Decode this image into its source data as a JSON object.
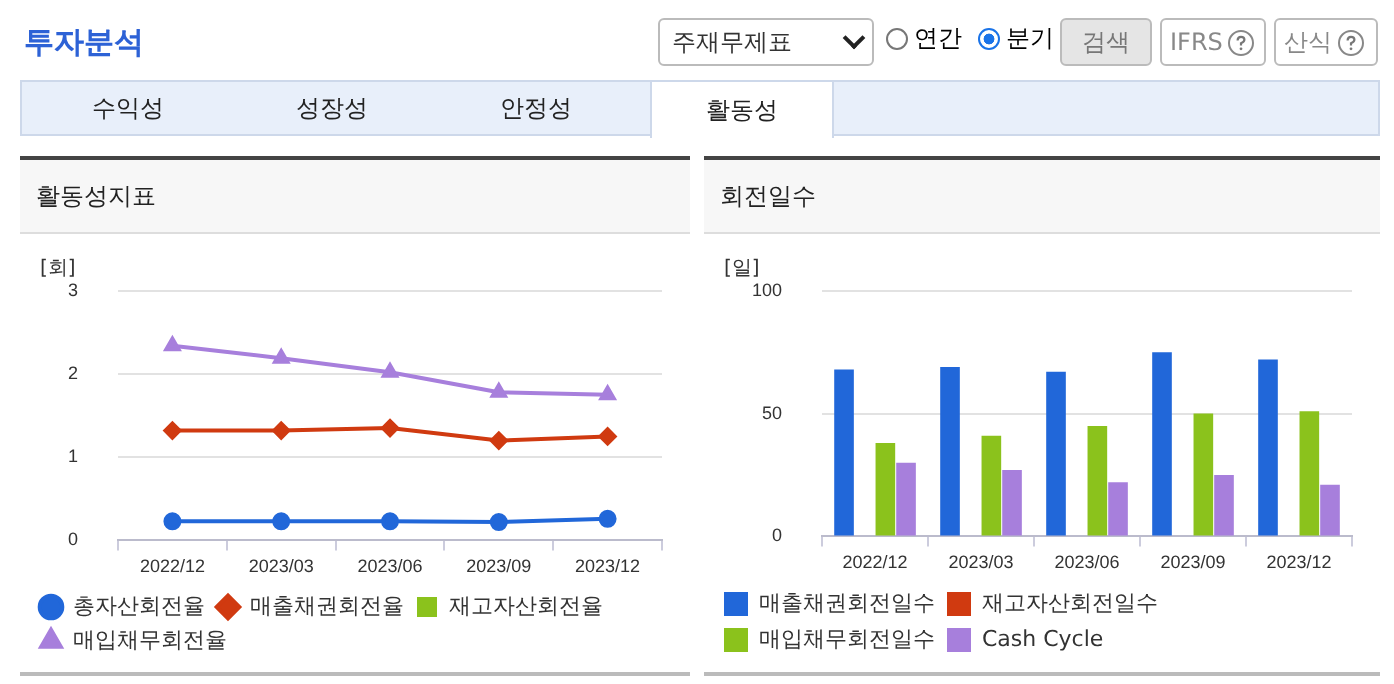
{
  "chart_data": [
    {
      "type": "other",
      "title": "투자분석",
      "annotations": [
        "주재무제표",
        "연간",
        "분기",
        "검색",
        "IFRS",
        "산식",
        "수익성",
        "성장성",
        "안정성",
        "활동성"
      ]
    },
    {
      "type": "line",
      "title": "활동성지표",
      "ylabel": "[회]",
      "categories": [
        "2022/12",
        "2023/03",
        "2023/06",
        "2023/09",
        "2023/12"
      ],
      "ylim": [
        0,
        3
      ],
      "yticks": [
        0,
        1,
        2,
        3
      ],
      "grid": "y",
      "legend": "bottom",
      "series": [
        {
          "name": "총자산회전율",
          "color": "#2167d9",
          "marker": "circle",
          "values": [
            0.23,
            0.23,
            0.23,
            0.22,
            0.26
          ]
        },
        {
          "name": "매출채권회전율",
          "color": "#d03a10",
          "marker": "diamond",
          "values": [
            1.32,
            1.32,
            1.35,
            1.2,
            1.25
          ]
        },
        {
          "name": "재고자산회전율",
          "color": "#8bc21c",
          "marker": "square",
          "values": [
            null,
            null,
            null,
            null,
            null
          ]
        },
        {
          "name": "매입채무회전율",
          "color": "#a77fdc",
          "marker": "triangle",
          "values": [
            2.34,
            2.19,
            2.02,
            1.78,
            1.75
          ]
        }
      ]
    },
    {
      "type": "bar",
      "title": "회전일수",
      "ylabel": "[일]",
      "categories": [
        "2022/12",
        "2023/03",
        "2023/06",
        "2023/09",
        "2023/12"
      ],
      "ylim": [
        0,
        100
      ],
      "yticks": [
        0,
        50,
        100
      ],
      "grid": "y",
      "legend": "bottom",
      "series": [
        {
          "name": "매출채권회전일수",
          "color": "#2167d9",
          "values": [
            68,
            69,
            67,
            75,
            72
          ]
        },
        {
          "name": "재고자산회전일수",
          "color": "#d03a10",
          "values": [
            null,
            null,
            null,
            null,
            null
          ]
        },
        {
          "name": "매입채무회전일수",
          "color": "#8bc21c",
          "values": [
            38,
            41,
            45,
            50,
            51
          ]
        },
        {
          "name": "Cash Cycle",
          "color": "#a77fdc",
          "values": [
            30,
            27,
            22,
            25,
            21
          ]
        }
      ]
    }
  ]
}
